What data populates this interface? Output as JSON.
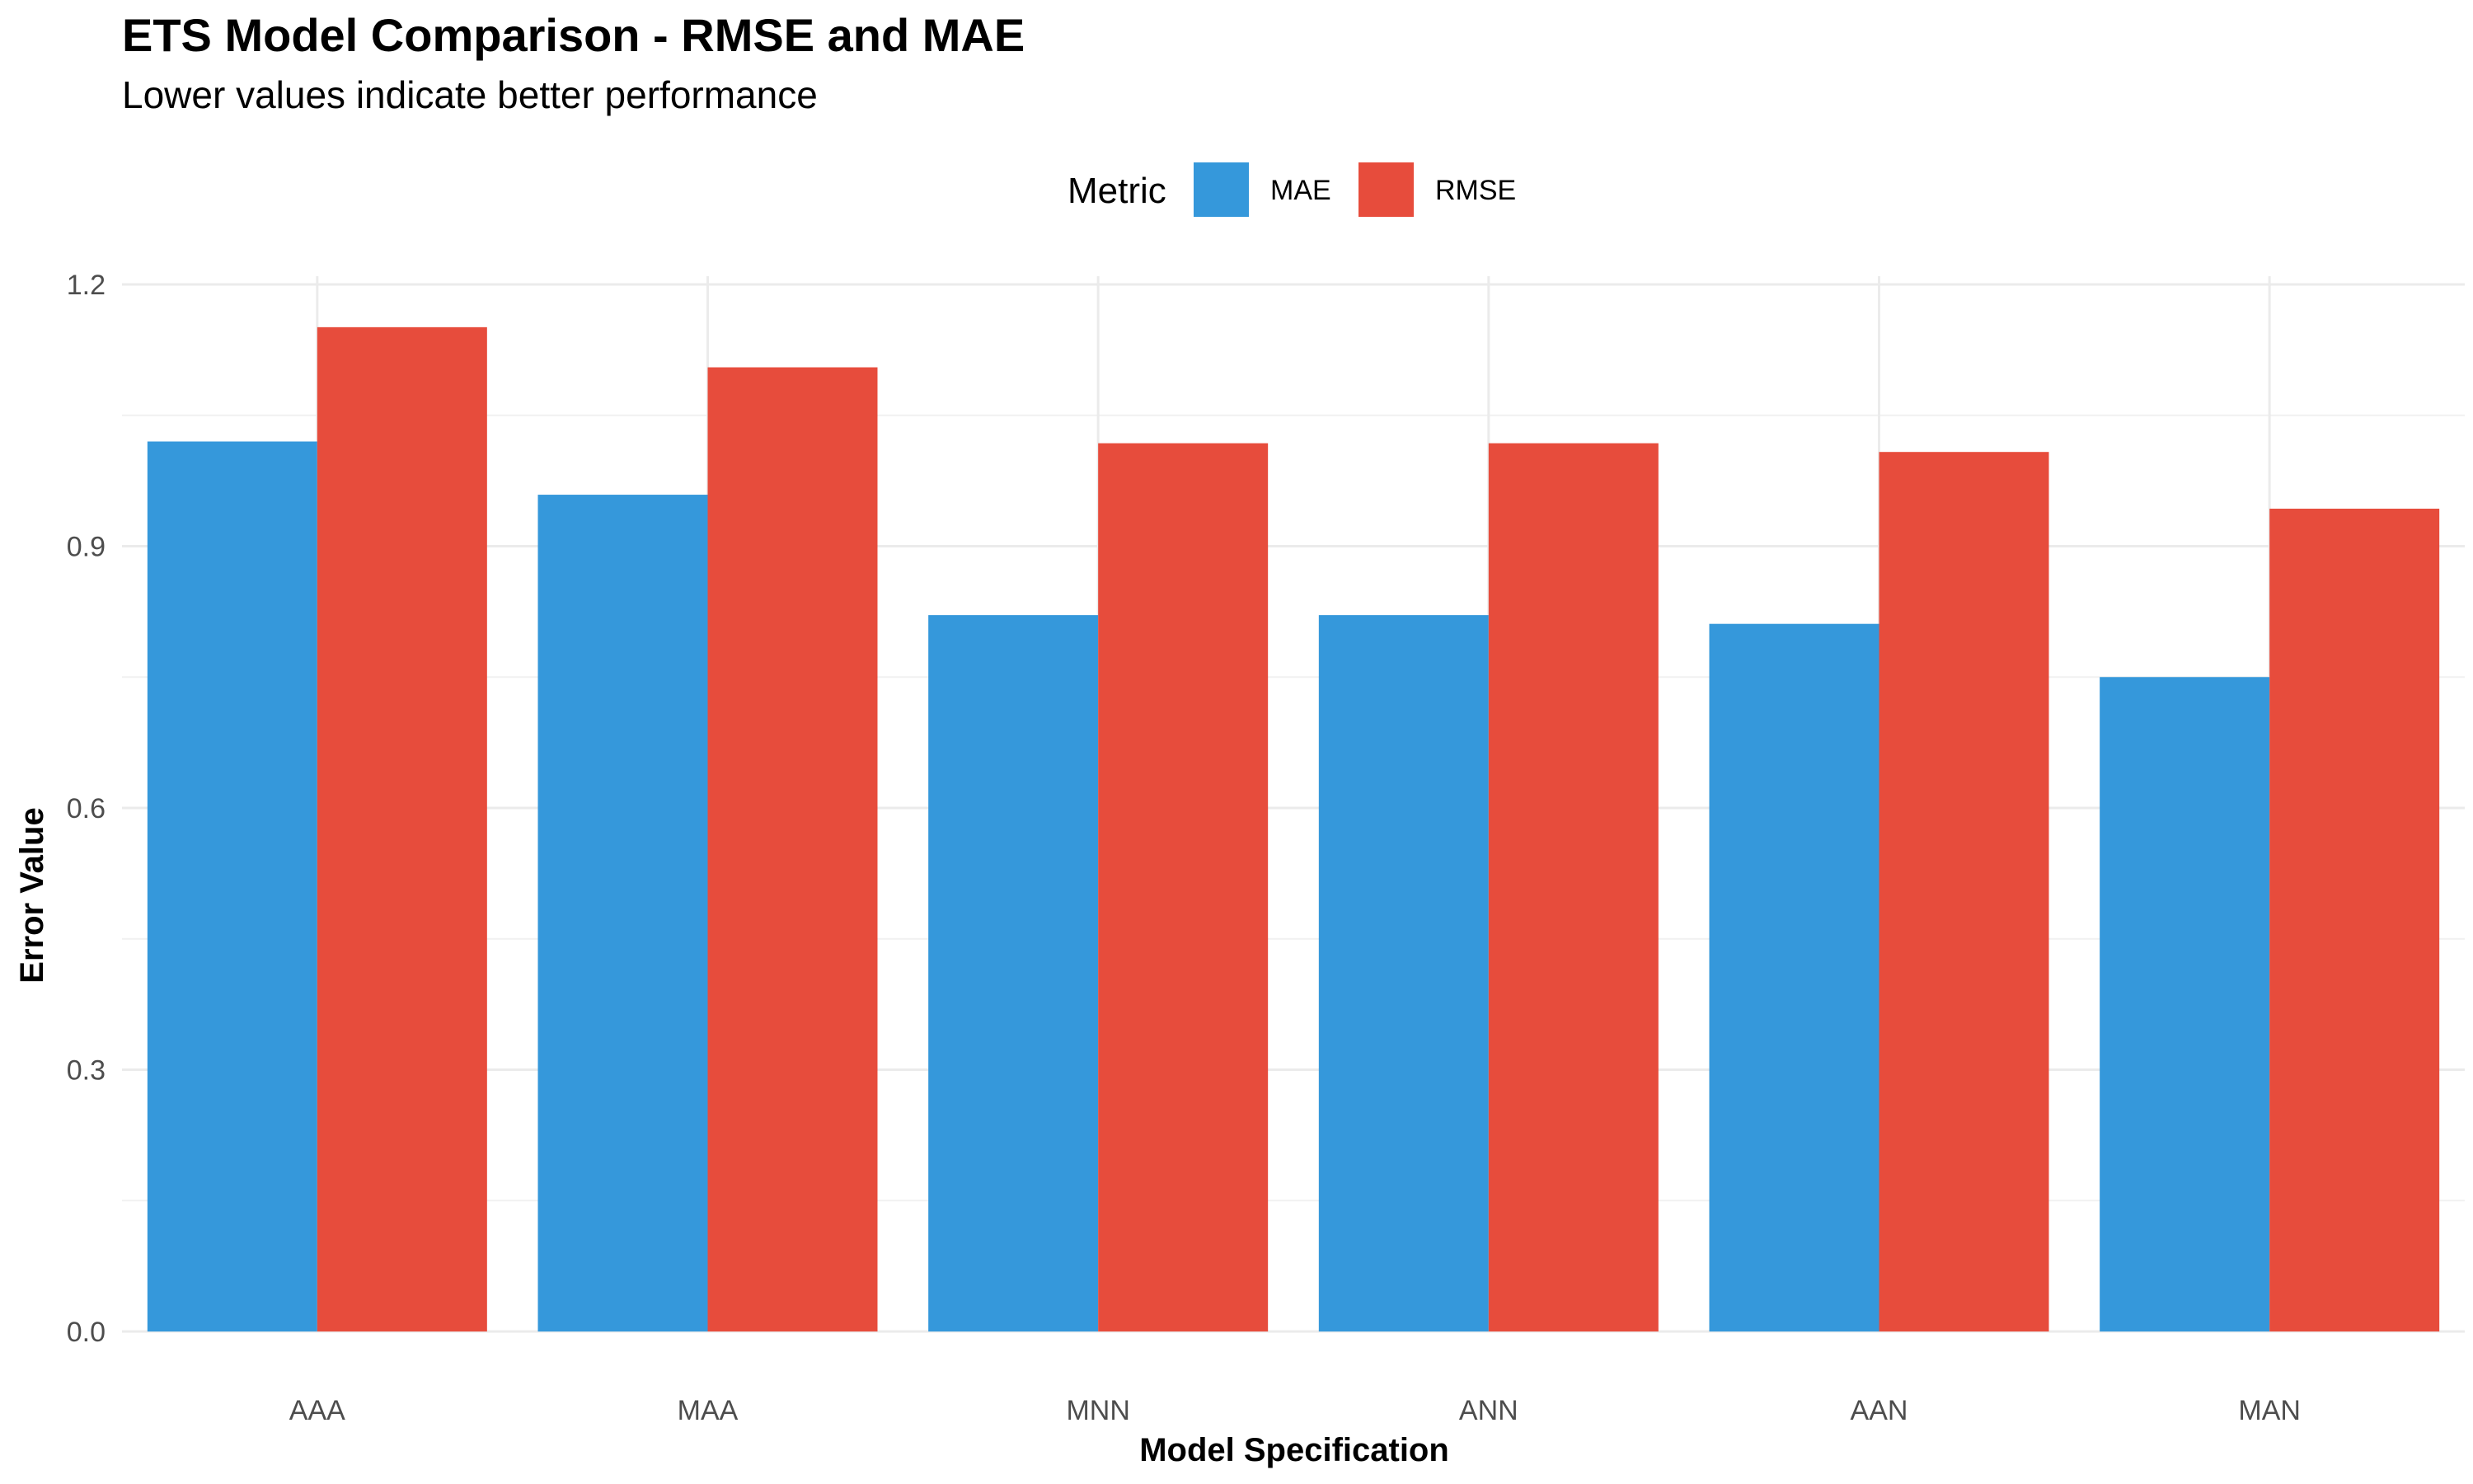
{
  "chart_data": {
    "type": "bar",
    "title": "ETS Model Comparison - RMSE and MAE",
    "subtitle": "Lower values indicate better performance",
    "xlabel": "Model Specification",
    "ylabel": "Error Value",
    "categories": [
      "AAA",
      "MAA",
      "MNN",
      "ANN",
      "AAN",
      "MAN"
    ],
    "series": [
      {
        "name": "MAE",
        "color": "#3598DB",
        "values": [
          1.02,
          0.959,
          0.821,
          0.821,
          0.811,
          0.75
        ]
      },
      {
        "name": "RMSE",
        "color": "#E74C3C",
        "values": [
          1.151,
          1.105,
          1.018,
          1.018,
          1.008,
          0.943
        ]
      }
    ],
    "ylim": [
      0,
      1.25
    ],
    "yticks": [
      "0.0",
      "0.3",
      "0.6",
      "0.9",
      "1.2"
    ],
    "legend": {
      "title": "Metric",
      "position": "top"
    },
    "grid": true
  }
}
